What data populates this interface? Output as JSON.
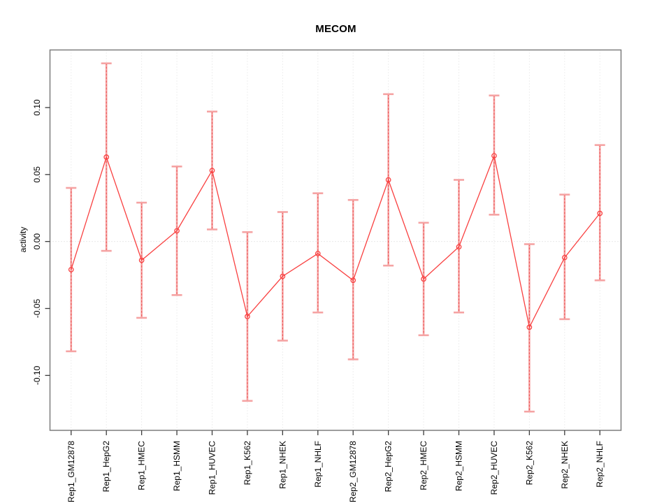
{
  "chart_data": {
    "type": "line",
    "title": "MECOM",
    "ylabel": "activity",
    "xlabel": "",
    "legend": "none",
    "grid": "dotted vertical gridline at each category; dotted horizontal line at y=0",
    "marker": "open-circle",
    "error_bars": true,
    "categories": [
      "Rep1_GM12878",
      "Rep1_HepG2",
      "Rep1_HMEC",
      "Rep1_HSMM",
      "Rep1_HUVEC",
      "Rep1_K562",
      "Rep1_NHEK",
      "Rep1_NHLF",
      "Rep2_GM12878",
      "Rep2_HepG2",
      "Rep2_HMEC",
      "Rep2_HSMM",
      "Rep2_HUVEC",
      "Rep2_K562",
      "Rep2_NHEK",
      "Rep2_NHLF"
    ],
    "series": [
      {
        "name": "activity",
        "values": [
          -0.021,
          0.063,
          -0.014,
          0.008,
          0.053,
          -0.056,
          -0.026,
          -0.009,
          -0.029,
          0.046,
          -0.028,
          -0.004,
          0.064,
          -0.064,
          -0.012,
          0.021
        ]
      }
    ],
    "error_high": [
      0.04,
      0.133,
      0.029,
      0.056,
      0.097,
      0.007,
      0.022,
      0.036,
      0.031,
      0.11,
      0.014,
      0.046,
      0.109,
      -0.002,
      0.035,
      0.072
    ],
    "error_low": [
      -0.082,
      -0.007,
      -0.057,
      -0.04,
      0.009,
      -0.119,
      -0.074,
      -0.053,
      -0.088,
      -0.018,
      -0.07,
      -0.053,
      0.02,
      -0.127,
      -0.058,
      -0.029
    ],
    "ytick_values": [
      0.1,
      0.05,
      0.0,
      -0.05,
      -0.1
    ],
    "ytick_labels": [
      "0.10",
      "0.05",
      "0.00",
      "-0.05",
      "-0.10"
    ],
    "ylim": [
      -0.141,
      0.143
    ],
    "colors": {
      "line": "#f94040",
      "error_bar": "#f5a3a3",
      "error_bar_dash": "#ee5858",
      "grid": "#dedede",
      "zero_line": "#d4d4d4",
      "axis_box": "#7d7d7d",
      "tick": "#3c3c3c",
      "text": "#000000",
      "background": "#ffffff"
    }
  }
}
